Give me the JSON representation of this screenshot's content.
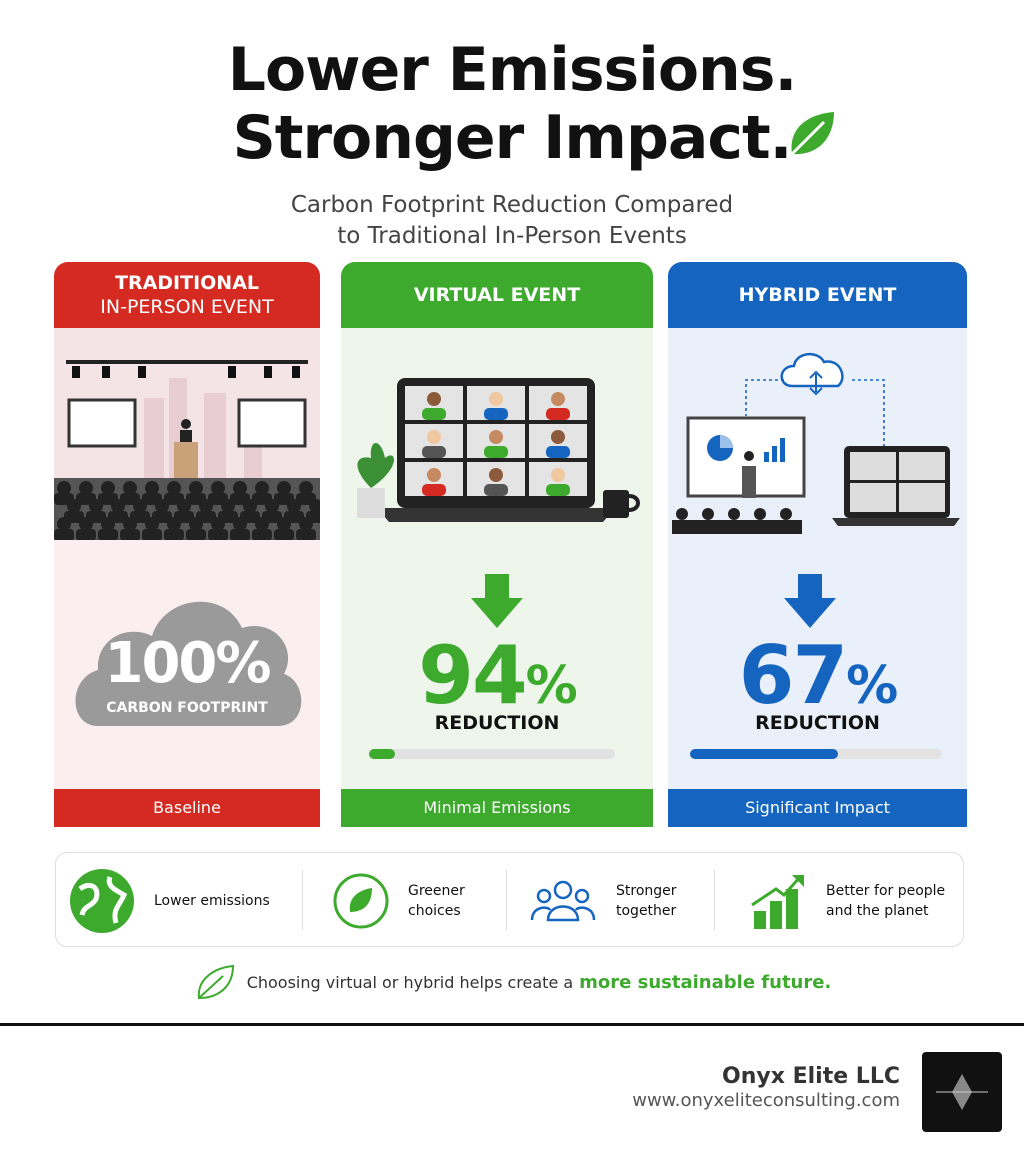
{
  "header": {
    "title_lines": [
      "Lower Emissions.",
      "Stronger Impact."
    ],
    "subtitle_lines": [
      "Carbon Footprint Reduction Compared",
      "to Traditional In-Person Events"
    ]
  },
  "cards": [
    {
      "title_lines": [
        "TRADITIONAL",
        "IN-PERSON EVENT"
      ],
      "stat_number": "100",
      "stat_unit": "%",
      "stat_label": "CARBON FOOTPRINT",
      "footer": "Baseline"
    },
    {
      "title_lines": [
        "VIRTUAL EVENT"
      ],
      "stat_number": "94",
      "stat_unit": "%",
      "stat_label": "REDUCTION",
      "footer": "Minimal Emissions"
    },
    {
      "title_lines": [
        "HYBRID EVENT"
      ],
      "stat_number": "67",
      "stat_unit": "%",
      "stat_label": "REDUCTION",
      "footer": "Significant Impact"
    }
  ],
  "benefits": [
    {
      "lines": [
        "Lower emissions"
      ]
    },
    {
      "lines": [
        "Greener",
        "choices"
      ]
    },
    {
      "lines": [
        "Stronger",
        "together"
      ]
    },
    {
      "lines": [
        "Better for people",
        "and the planet"
      ]
    }
  ],
  "tagline": {
    "text": "Choosing virtual or hybrid helps create a",
    "highlight": "more sustainable future."
  },
  "footer": {
    "company": "Onyx Elite LLC",
    "website": "www.onyxeliteconsulting.com"
  }
}
